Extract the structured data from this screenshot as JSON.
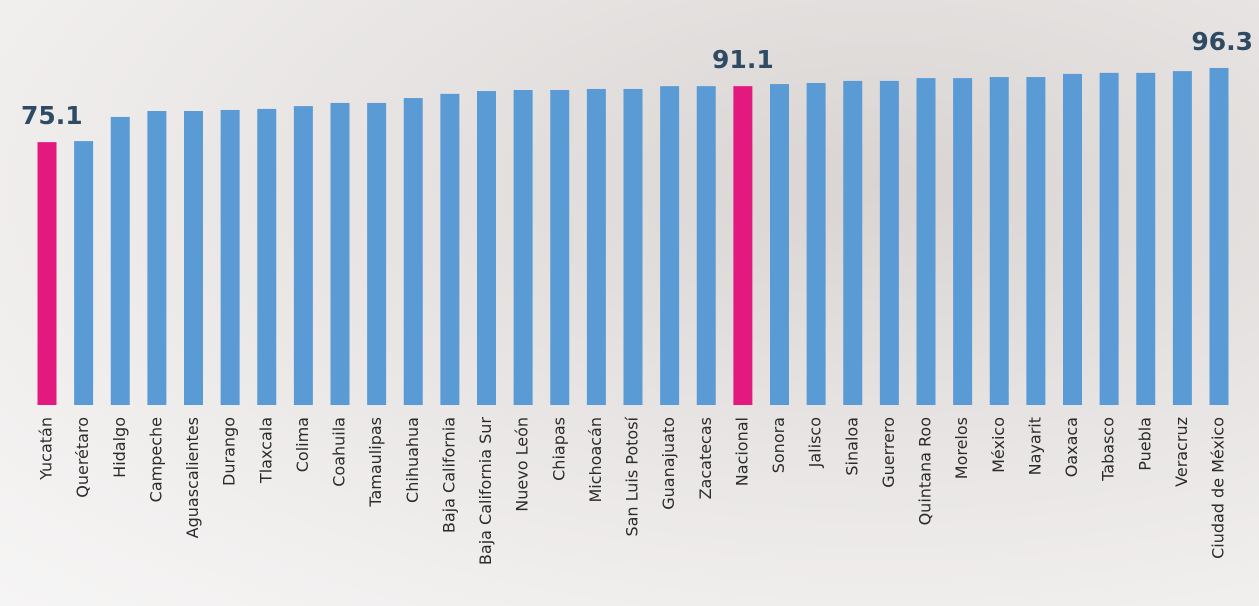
{
  "chart_data": {
    "type": "bar",
    "categories": [
      "Yucatán",
      "Querétaro",
      "Hidalgo",
      "Campeche",
      "Aguascalientes",
      "Durango",
      "Tlaxcala",
      "Colima",
      "Coahuila",
      "Tamaulipas",
      "Chihuahua",
      "Baja California",
      "Baja California Sur",
      "Nuevo León",
      "Chiapas",
      "Michoacán",
      "San Luis Potosí",
      "Guanajuato",
      "Zacatecas",
      "Nacional",
      "Sonora",
      "Jalisco",
      "Sinaloa",
      "Guerrero",
      "Quintana Roo",
      "Morelos",
      "México",
      "Nayarit",
      "Oaxaca",
      "Tabasco",
      "Puebla",
      "Veracruz",
      "Ciudad de México"
    ],
    "values": [
      75.1,
      75.4,
      82.3,
      84.0,
      84.0,
      84.3,
      84.6,
      85.4,
      86.3,
      86.3,
      87.7,
      88.9,
      89.7,
      90.0,
      90.0,
      90.3,
      90.3,
      91.1,
      91.1,
      91.1,
      91.7,
      92.0,
      92.6,
      92.6,
      93.4,
      93.4,
      93.7,
      93.7,
      94.6,
      94.9,
      94.9,
      95.4,
      96.3
    ],
    "value_labels": [
      "75.1",
      null,
      null,
      null,
      null,
      null,
      null,
      null,
      null,
      null,
      null,
      null,
      null,
      null,
      null,
      null,
      null,
      null,
      null,
      "91.1",
      null,
      null,
      null,
      null,
      null,
      null,
      null,
      null,
      null,
      null,
      null,
      null,
      "96.3"
    ],
    "colors": [
      "#e3197f",
      "#5b9bd5",
      "#5b9bd5",
      "#5b9bd5",
      "#5b9bd5",
      "#5b9bd5",
      "#5b9bd5",
      "#5b9bd5",
      "#5b9bd5",
      "#5b9bd5",
      "#5b9bd5",
      "#5b9bd5",
      "#5b9bd5",
      "#5b9bd5",
      "#5b9bd5",
      "#5b9bd5",
      "#5b9bd5",
      "#5b9bd5",
      "#5b9bd5",
      "#e3197f",
      "#5b9bd5",
      "#5b9bd5",
      "#5b9bd5",
      "#5b9bd5",
      "#5b9bd5",
      "#5b9bd5",
      "#5b9bd5",
      "#5b9bd5",
      "#5b9bd5",
      "#5b9bd5",
      "#5b9bd5",
      "#5b9bd5",
      "#5b9bd5"
    ]
  }
}
